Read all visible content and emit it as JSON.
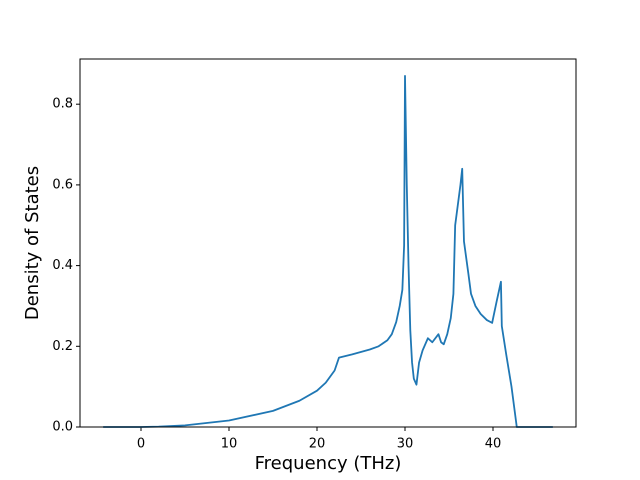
{
  "chart_data": {
    "type": "line",
    "xlabel": "Frequency (THz)",
    "ylabel": "Density of States",
    "x": [
      -4.3,
      0,
      2,
      5,
      10,
      15,
      18,
      20,
      21,
      22,
      22.5,
      24,
      26,
      27,
      28,
      28.5,
      29,
      29.4,
      29.7,
      29.9,
      30.0,
      30.2,
      30.4,
      30.6,
      30.8,
      31.0,
      31.3,
      31.6,
      32,
      32.6,
      33.1,
      33.8,
      34.1,
      34.4,
      34.8,
      35.2,
      35.5,
      35.7,
      36.3,
      36.5,
      36.7,
      37.2,
      37.5,
      38,
      38.6,
      39.3,
      39.9,
      40.4,
      40.9,
      41.0,
      41.5,
      42.1,
      42.7,
      46.8
    ],
    "series": [
      {
        "color": "#1f77b4",
        "values": [
          0,
          0,
          0.001,
          0.004,
          0.016,
          0.04,
          0.065,
          0.09,
          0.11,
          0.14,
          0.172,
          0.18,
          0.192,
          0.2,
          0.215,
          0.23,
          0.26,
          0.3,
          0.34,
          0.45,
          0.87,
          0.6,
          0.4,
          0.24,
          0.16,
          0.12,
          0.105,
          0.16,
          0.19,
          0.22,
          0.21,
          0.23,
          0.21,
          0.205,
          0.23,
          0.27,
          0.33,
          0.5,
          0.6,
          0.64,
          0.46,
          0.38,
          0.33,
          0.3,
          0.28,
          0.265,
          0.258,
          0.31,
          0.36,
          0.25,
          0.18,
          0.1,
          0,
          0
        ]
      }
    ],
    "xlim": [
      -6.93,
      49.43
    ],
    "ylim": [
      0,
      0.912
    ],
    "xticks": [
      0,
      10,
      20,
      30,
      40
    ],
    "yticks": [
      {
        "value": 0,
        "label": "0.0"
      },
      0.2,
      0.4,
      0.6,
      0.8
    ]
  }
}
